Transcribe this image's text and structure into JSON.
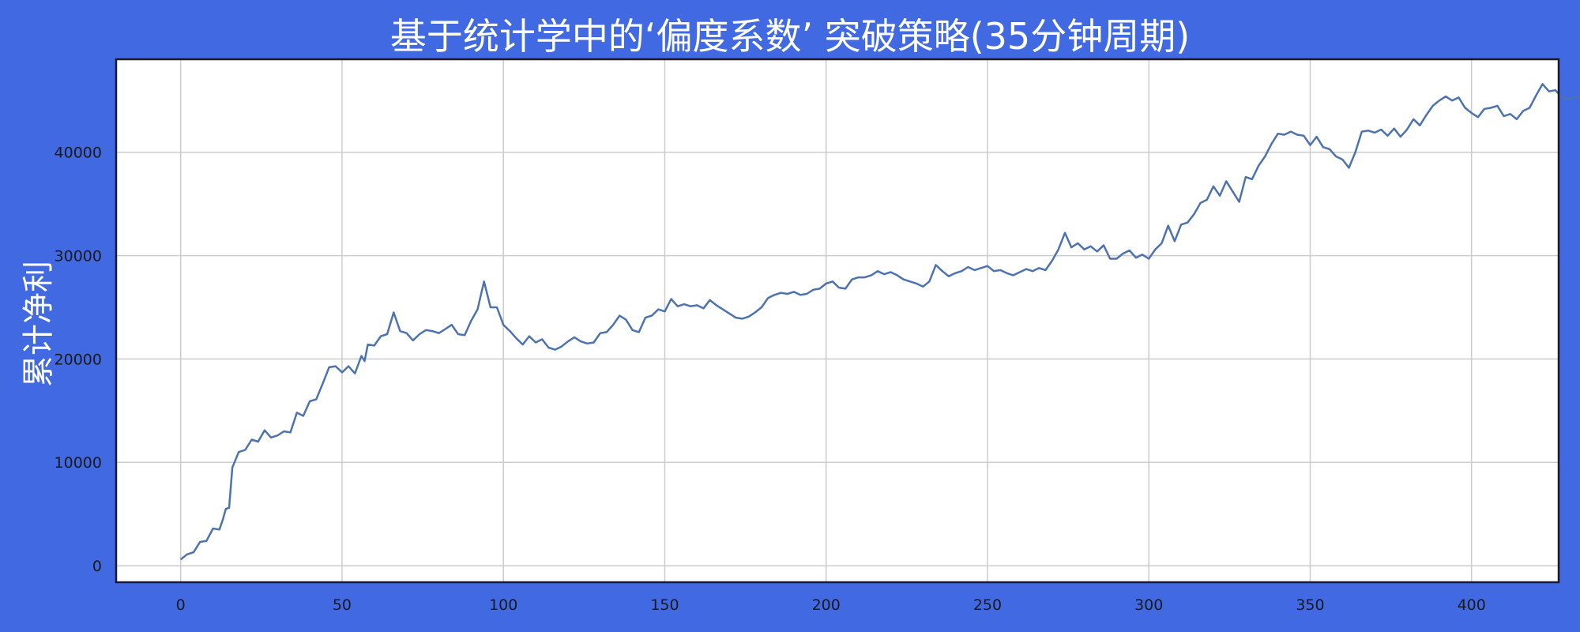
{
  "chart_data": {
    "type": "line",
    "title": "基于统计学中的‘偏度系数’ 突破策略(35分钟周期)",
    "xlabel": "",
    "ylabel": "累计净利",
    "xlim": [
      -20,
      427
    ],
    "ylim": [
      -1600,
      49000
    ],
    "x_ticks": [
      "0",
      "50",
      "100",
      "150",
      "200",
      "250",
      "300",
      "350",
      "400"
    ],
    "y_ticks": [
      "0",
      "10000",
      "20000",
      "30000",
      "40000"
    ],
    "grid": true,
    "colors": {
      "background": "#4169e1",
      "line": "#4c72b0",
      "plot_bg": "#ffffff",
      "grid": "#cccccc"
    },
    "series": [
      {
        "points": [
          [
            0,
            600
          ],
          [
            2,
            1100
          ],
          [
            4,
            1300
          ],
          [
            6,
            2300
          ],
          [
            8,
            2400
          ],
          [
            10,
            3600
          ],
          [
            12,
            3500
          ],
          [
            13,
            4400
          ],
          [
            14,
            5500
          ],
          [
            15,
            5600
          ],
          [
            16,
            9500
          ],
          [
            18,
            11000
          ],
          [
            20,
            11200
          ],
          [
            22,
            12200
          ],
          [
            24,
            12000
          ],
          [
            26,
            13100
          ],
          [
            28,
            12400
          ],
          [
            30,
            12600
          ],
          [
            32,
            13000
          ],
          [
            34,
            12900
          ],
          [
            36,
            14800
          ],
          [
            38,
            14500
          ],
          [
            40,
            15900
          ],
          [
            42,
            16100
          ],
          [
            44,
            17600
          ],
          [
            46,
            19200
          ],
          [
            48,
            19300
          ],
          [
            50,
            18700
          ],
          [
            52,
            19300
          ],
          [
            54,
            18600
          ],
          [
            56,
            20300
          ],
          [
            57,
            19800
          ],
          [
            58,
            21400
          ],
          [
            60,
            21300
          ],
          [
            62,
            22200
          ],
          [
            64,
            22400
          ],
          [
            66,
            24500
          ],
          [
            68,
            22700
          ],
          [
            70,
            22500
          ],
          [
            72,
            21800
          ],
          [
            74,
            22400
          ],
          [
            76,
            22800
          ],
          [
            78,
            22700
          ],
          [
            80,
            22500
          ],
          [
            82,
            22900
          ],
          [
            84,
            23300
          ],
          [
            86,
            22400
          ],
          [
            88,
            22300
          ],
          [
            90,
            23700
          ],
          [
            92,
            24800
          ],
          [
            94,
            27500
          ],
          [
            96,
            25000
          ],
          [
            98,
            25000
          ],
          [
            100,
            23300
          ],
          [
            102,
            22700
          ],
          [
            104,
            22000
          ],
          [
            106,
            21400
          ],
          [
            108,
            22200
          ],
          [
            110,
            21600
          ],
          [
            112,
            21900
          ],
          [
            114,
            21100
          ],
          [
            116,
            20900
          ],
          [
            118,
            21200
          ],
          [
            120,
            21700
          ],
          [
            122,
            22100
          ],
          [
            124,
            21700
          ],
          [
            126,
            21500
          ],
          [
            128,
            21600
          ],
          [
            130,
            22500
          ],
          [
            132,
            22600
          ],
          [
            134,
            23300
          ],
          [
            136,
            24200
          ],
          [
            138,
            23800
          ],
          [
            140,
            22800
          ],
          [
            142,
            22600
          ],
          [
            144,
            24000
          ],
          [
            146,
            24200
          ],
          [
            148,
            24800
          ],
          [
            150,
            24600
          ],
          [
            152,
            25800
          ],
          [
            154,
            25100
          ],
          [
            156,
            25300
          ],
          [
            158,
            25100
          ],
          [
            160,
            25200
          ],
          [
            162,
            24900
          ],
          [
            164,
            25700
          ],
          [
            166,
            25200
          ],
          [
            168,
            24800
          ],
          [
            170,
            24400
          ],
          [
            172,
            24000
          ],
          [
            174,
            23900
          ],
          [
            176,
            24100
          ],
          [
            178,
            24500
          ],
          [
            180,
            25000
          ],
          [
            182,
            25900
          ],
          [
            184,
            26200
          ],
          [
            186,
            26400
          ],
          [
            188,
            26300
          ],
          [
            190,
            26500
          ],
          [
            192,
            26200
          ],
          [
            194,
            26300
          ],
          [
            196,
            26700
          ],
          [
            198,
            26800
          ],
          [
            200,
            27300
          ],
          [
            202,
            27500
          ],
          [
            204,
            26900
          ],
          [
            206,
            26800
          ],
          [
            208,
            27700
          ],
          [
            210,
            27900
          ],
          [
            212,
            27900
          ],
          [
            214,
            28100
          ],
          [
            216,
            28500
          ],
          [
            218,
            28200
          ],
          [
            220,
            28400
          ],
          [
            222,
            28100
          ],
          [
            224,
            27700
          ],
          [
            226,
            27500
          ],
          [
            228,
            27300
          ],
          [
            230,
            27000
          ],
          [
            232,
            27500
          ],
          [
            234,
            29100
          ],
          [
            236,
            28500
          ],
          [
            238,
            28000
          ],
          [
            240,
            28300
          ],
          [
            242,
            28500
          ],
          [
            244,
            28900
          ],
          [
            246,
            28600
          ],
          [
            248,
            28800
          ],
          [
            250,
            29000
          ],
          [
            252,
            28500
          ],
          [
            254,
            28600
          ],
          [
            256,
            28300
          ],
          [
            258,
            28100
          ],
          [
            260,
            28400
          ],
          [
            262,
            28700
          ],
          [
            264,
            28500
          ],
          [
            266,
            28800
          ],
          [
            268,
            28600
          ],
          [
            270,
            29500
          ],
          [
            272,
            30600
          ],
          [
            274,
            32200
          ],
          [
            276,
            30800
          ],
          [
            278,
            31200
          ],
          [
            280,
            30600
          ],
          [
            282,
            30900
          ],
          [
            284,
            30400
          ],
          [
            286,
            31000
          ],
          [
            288,
            29700
          ],
          [
            290,
            29700
          ],
          [
            292,
            30200
          ],
          [
            294,
            30500
          ],
          [
            296,
            29800
          ],
          [
            298,
            30100
          ],
          [
            300,
            29700
          ],
          [
            302,
            30600
          ],
          [
            304,
            31200
          ],
          [
            306,
            32900
          ],
          [
            308,
            31400
          ],
          [
            310,
            33000
          ],
          [
            312,
            33200
          ],
          [
            314,
            34000
          ],
          [
            316,
            35100
          ],
          [
            318,
            35400
          ],
          [
            320,
            36700
          ],
          [
            322,
            35800
          ],
          [
            324,
            37200
          ],
          [
            326,
            36200
          ],
          [
            328,
            35200
          ],
          [
            330,
            37600
          ],
          [
            332,
            37400
          ],
          [
            334,
            38700
          ],
          [
            336,
            39600
          ],
          [
            338,
            40800
          ],
          [
            340,
            41800
          ],
          [
            342,
            41700
          ],
          [
            344,
            42000
          ],
          [
            346,
            41700
          ],
          [
            348,
            41600
          ],
          [
            350,
            40700
          ],
          [
            352,
            41500
          ],
          [
            354,
            40500
          ],
          [
            356,
            40300
          ],
          [
            358,
            39600
          ],
          [
            360,
            39300
          ],
          [
            362,
            38500
          ],
          [
            364,
            40000
          ],
          [
            366,
            42000
          ],
          [
            368,
            42100
          ],
          [
            370,
            41900
          ],
          [
            372,
            42200
          ],
          [
            374,
            41600
          ],
          [
            376,
            42300
          ],
          [
            378,
            41500
          ],
          [
            380,
            42200
          ],
          [
            382,
            43200
          ],
          [
            384,
            42600
          ],
          [
            386,
            43600
          ],
          [
            388,
            44500
          ],
          [
            390,
            45000
          ],
          [
            392,
            45400
          ],
          [
            394,
            45000
          ],
          [
            396,
            45300
          ],
          [
            398,
            44300
          ],
          [
            400,
            43800
          ],
          [
            402,
            43400
          ],
          [
            404,
            44200
          ],
          [
            406,
            44300
          ],
          [
            408,
            44500
          ],
          [
            410,
            43500
          ],
          [
            412,
            43700
          ],
          [
            414,
            43200
          ],
          [
            416,
            44000
          ],
          [
            418,
            44300
          ],
          [
            420,
            45500
          ],
          [
            422,
            46600
          ],
          [
            424,
            45900
          ],
          [
            426,
            46000
          ],
          [
            428,
            45300
          ],
          [
            430,
            45100
          ],
          [
            432,
            45400
          ],
          [
            434,
            45300
          ],
          [
            436,
            46500
          ],
          [
            438,
            47000
          ],
          [
            440,
            46500
          ],
          [
            441,
            46300
          ]
        ]
      }
    ]
  }
}
